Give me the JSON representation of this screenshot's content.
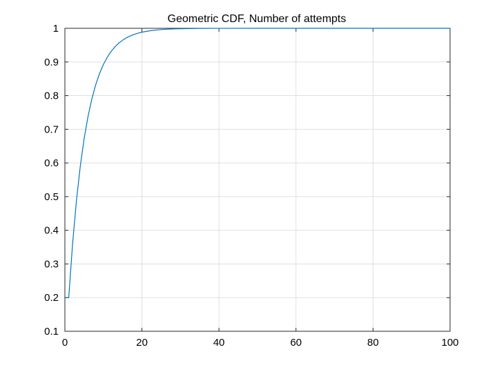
{
  "chart_data": {
    "type": "line",
    "title": "Geometric CDF, Number of attempts",
    "xlabel": "",
    "ylabel": "",
    "xlim": [
      0,
      100
    ],
    "ylim": [
      0.1,
      1
    ],
    "xticks": [
      "0",
      "20",
      "40",
      "60",
      "80",
      "100"
    ],
    "yticks": [
      "0.1",
      "0.2",
      "0.3",
      "0.4",
      "0.5",
      "0.6",
      "0.7",
      "0.8",
      "0.9",
      "1"
    ],
    "grid": true,
    "legend": "none",
    "series": [
      {
        "color": "#0072bd",
        "x": [
          1,
          2,
          3,
          4,
          5,
          6,
          7,
          8,
          9,
          10,
          11,
          12,
          13,
          14,
          15,
          16,
          17,
          18,
          19,
          20,
          22,
          24,
          26,
          28,
          30,
          35,
          40,
          50,
          60,
          70,
          80,
          90,
          100
        ],
        "y": [
          0.2,
          0.36,
          0.488,
          0.5904,
          0.6723,
          0.7379,
          0.7903,
          0.8322,
          0.8658,
          0.8926,
          0.9141,
          0.9313,
          0.945,
          0.956,
          0.9648,
          0.9719,
          0.9775,
          0.982,
          0.9856,
          0.9885,
          0.9926,
          0.9953,
          0.997,
          0.9981,
          0.9988,
          0.9996,
          0.9999,
          1.0,
          1.0,
          1.0,
          1.0,
          1.0,
          1.0
        ]
      }
    ]
  }
}
